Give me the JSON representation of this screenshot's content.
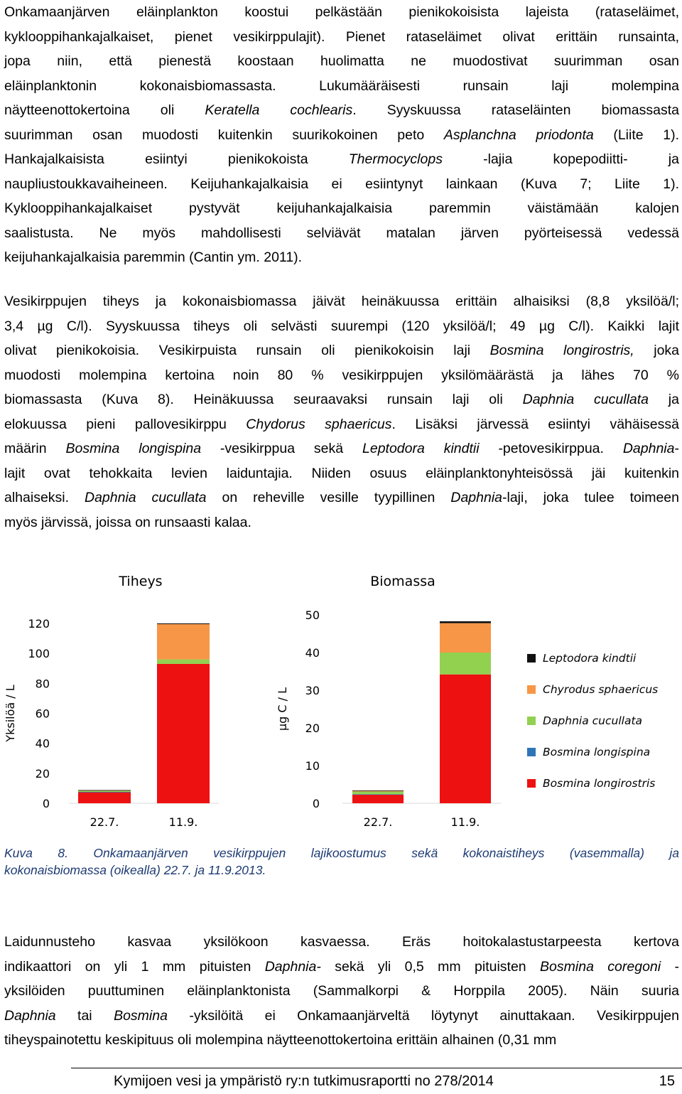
{
  "paragraph1": [
    [
      {
        "t": "Onkamaanjärven eläinplankton koostui pelkästään pienikokoisista lajeista (rataseläimet,"
      }
    ],
    [
      {
        "t": "kyklooppihankajalkaiset, pienet vesikirppulajit). Pienet rataseläimet olivat erittäin runsainta,"
      }
    ],
    [
      {
        "t": "jopa niin, että pienestä koostaan huolimatta ne muodostivat suurimman osan"
      }
    ],
    [
      {
        "t": "eläinplanktonin kokonaisbiomassasta. Lukumääräisesti runsain laji molempina"
      }
    ],
    [
      {
        "t": "näytteenottokertoina oli "
      },
      {
        "t": "Keratella cochlearis",
        "i": true
      },
      {
        "t": ". Syyskuussa rataseläinten biomassasta"
      }
    ],
    [
      {
        "t": "suurimman osan muodosti kuitenkin suurikokoinen peto "
      },
      {
        "t": "Asplanchna priodonta",
        "i": true
      },
      {
        "t": " (Liite 1)."
      }
    ],
    [
      {
        "t": "Hankajalkaisista esiintyi pienikokoista "
      },
      {
        "t": "Thermocyclops",
        "i": true
      },
      {
        "t": " -lajia kopepodiitti- ja"
      }
    ],
    [
      {
        "t": "naupliustoukkavaiheineen. Keijuhankajalkaisia ei esiintynyt lainkaan (Kuva 7; Liite 1)."
      }
    ],
    [
      {
        "t": "Kyklooppihankajalkaiset pystyvät keijuhankajalkaisia paremmin väistämään kalojen"
      }
    ],
    [
      {
        "t": "saalistusta. Ne myös mahdollisesti selviävät matalan järven pyörteisessä vedessä"
      }
    ],
    [
      {
        "t": "keijuhankajalkaisia paremmin (Cantin ym. 2011)."
      }
    ]
  ],
  "paragraph2": [
    [
      {
        "t": "Vesikirppujen tiheys ja kokonaisbiomassa jäivät heinäkuussa erittäin alhaisiksi (8,8 yksilöä/l;"
      }
    ],
    [
      {
        "t": "3,4 µg C/l). Syyskuussa tiheys oli selvästi suurempi (120 yksilöä/l; 49 µg C/l). Kaikki lajit"
      }
    ],
    [
      {
        "t": "olivat pienikokoisia. Vesikirpuista runsain oli pienikokoisin laji "
      },
      {
        "t": "Bosmina longirostris,",
        "i": true
      },
      {
        "t": " joka"
      }
    ],
    [
      {
        "t": "muodosti molempina kertoina noin 80 % vesikirppujen yksilömäärästä ja lähes 70 %"
      }
    ],
    [
      {
        "t": "biomassasta (Kuva 8). Heinäkuussa seuraavaksi runsain laji oli "
      },
      {
        "t": "Daphnia cucullata",
        "i": true
      },
      {
        "t": " ja"
      }
    ],
    [
      {
        "t": "elokuussa pieni pallovesikirppu "
      },
      {
        "t": "Chydorus sphaericus",
        "i": true
      },
      {
        "t": ". Lisäksi järvessä esiintyi vähäisessä"
      }
    ],
    [
      {
        "t": "määrin "
      },
      {
        "t": "Bosmina longispina",
        "i": true
      },
      {
        "t": " -vesikirppua sekä "
      },
      {
        "t": "Leptodora kindtii",
        "i": true
      },
      {
        "t": " -petovesikirppua. "
      },
      {
        "t": "Daphnia",
        "i": true
      },
      {
        "t": "-"
      }
    ],
    [
      {
        "t": "lajit ovat tehokkaita levien laiduntajia. Niiden osuus eläinplanktonyhteisössä jäi kuitenkin"
      }
    ],
    [
      {
        "t": "alhaiseksi. "
      },
      {
        "t": "Daphnia cucullata",
        "i": true
      },
      {
        "t": " on reheville vesille tyypillinen "
      },
      {
        "t": "Daphnia",
        "i": true
      },
      {
        "t": "-laji, joka tulee toimeen"
      }
    ],
    [
      {
        "t": "myös järvissä, joissa on runsaasti kalaa."
      }
    ]
  ],
  "caption": [
    "Kuva 8. Onkamaanjärven vesikirppujen lajikoostumus sekä kokonaistiheys (vasemmalla) ja",
    "kokonaisbiomassa (oikealla) 22.7. ja 11.9.2013."
  ],
  "paragraph3": [
    [
      {
        "t": "Laidunnusteho kasvaa yksilökoon kasvaessa. Eräs hoitokalastustarpeesta kertova"
      }
    ],
    [
      {
        "t": "indikaattori on yli 1 mm pituisten "
      },
      {
        "t": "Daphnia-",
        "i": true
      },
      {
        "t": " sekä yli 0,5 mm pituisten "
      },
      {
        "t": "Bosmina coregoni",
        "i": true
      },
      {
        "t": " -"
      }
    ],
    [
      {
        "t": "yksilöiden puuttuminen eläinplanktonista (Sammalkorpi & Horppila 2005). Näin suuria"
      }
    ],
    [
      {
        "t": ""
      },
      {
        "t": "Daphnia",
        "i": true
      },
      {
        "t": " tai "
      },
      {
        "t": "Bosmina",
        "i": true
      },
      {
        "t": " -yksilöitä ei Onkamaanjärveltä löytynyt ainuttakaan. Vesikirppujen"
      }
    ],
    [
      {
        "t": "tiheyspainotettu keskipituus oli molempina näytteenottokertoina erittäin alhainen (0,31 mm"
      }
    ]
  ],
  "footer": {
    "text": "Kymijoen vesi ja ympäristö ry:n tutkimusraportti no 278/2014",
    "page": "15"
  },
  "chart_data": [
    {
      "type": "bar",
      "stacked": true,
      "title": "Tiheys",
      "ylabel": "Yksilöä / L",
      "categories": [
        "22.7.",
        "11.9."
      ],
      "ylim": [
        0,
        120
      ],
      "yticks": [
        0,
        20,
        40,
        60,
        80,
        100,
        120
      ],
      "series": [
        {
          "name": "Bosmina longirostris",
          "color": "#ee1111",
          "values": [
            7.5,
            93
          ]
        },
        {
          "name": "Bosmina longispina",
          "color": "#2e75b6",
          "values": [
            0.1,
            0
          ]
        },
        {
          "name": "Daphnia cucullata",
          "color": "#92d050",
          "values": [
            0.8,
            3
          ]
        },
        {
          "name": "Chyrodus sphaericus",
          "color": "#f79646",
          "values": [
            0.3,
            23.5
          ]
        },
        {
          "name": "Leptodora kindtii",
          "color": "#111111",
          "values": [
            0.1,
            0.5
          ]
        }
      ]
    },
    {
      "type": "bar",
      "stacked": true,
      "title": "Biomassa",
      "ylabel": "µg C / L",
      "categories": [
        "22.7.",
        "11.9."
      ],
      "ylim": [
        0,
        50
      ],
      "yticks": [
        0,
        10,
        20,
        30,
        40,
        50
      ],
      "series": [
        {
          "name": "Bosmina longirostris",
          "color": "#ee1111",
          "values": [
            2.3,
            34.2
          ]
        },
        {
          "name": "Bosmina longispina",
          "color": "#2e75b6",
          "values": [
            0.1,
            0
          ]
        },
        {
          "name": "Daphnia cucullata",
          "color": "#92d050",
          "values": [
            0.7,
            5.8
          ]
        },
        {
          "name": "Chyrodus sphaericus",
          "color": "#f79646",
          "values": [
            0.2,
            7.8
          ]
        },
        {
          "name": "Leptodora kindtii",
          "color": "#111111",
          "values": [
            0.1,
            0.5
          ]
        }
      ]
    }
  ],
  "legend": [
    "Leptodora kindtii",
    "Chyrodus sphaericus",
    "Daphnia cucullata",
    "Bosmina longispina",
    "Bosmina longirostris"
  ]
}
